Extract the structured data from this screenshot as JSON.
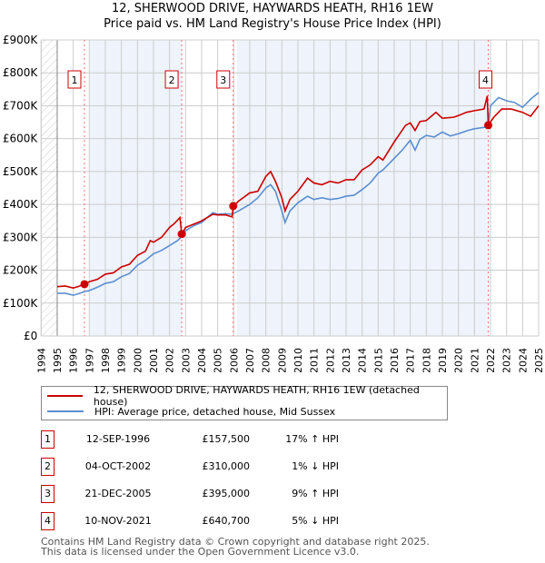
{
  "title_line1": "12, SHERWOOD DRIVE, HAYWARDS HEATH, RH16 1EW",
  "title_line2": "Price paid vs. HM Land Registry's House Price Index (HPI)",
  "chart_data": {
    "type": "line",
    "xlim": [
      1994,
      2025
    ],
    "ylim": [
      0,
      900000
    ],
    "x_ticks": [
      "1994",
      "1995",
      "1996",
      "1997",
      "1998",
      "1999",
      "2000",
      "2001",
      "2002",
      "2003",
      "2004",
      "2005",
      "2006",
      "2007",
      "2008",
      "2009",
      "2010",
      "2011",
      "2012",
      "2013",
      "2014",
      "2015",
      "2016",
      "2017",
      "2018",
      "2019",
      "2020",
      "2021",
      "2022",
      "2023",
      "2024",
      "2025"
    ],
    "y_ticks": [
      {
        "v": 0,
        "label": "£0"
      },
      {
        "v": 100000,
        "label": "£100K"
      },
      {
        "v": 200000,
        "label": "£200K"
      },
      {
        "v": 300000,
        "label": "£300K"
      },
      {
        "v": 400000,
        "label": "£400K"
      },
      {
        "v": 500000,
        "label": "£500K"
      },
      {
        "v": 600000,
        "label": "£600K"
      },
      {
        "v": 700000,
        "label": "£700K"
      },
      {
        "v": 800000,
        "label": "£800K"
      },
      {
        "v": 900000,
        "label": "£900K"
      }
    ],
    "series": [
      {
        "name": "12, SHERWOOD DRIVE, HAYWARDS HEATH, RH16 1EW (detached house)",
        "color": "#cc0000",
        "x": [
          1995,
          1995.5,
          1996,
          1996.3,
          1996.7,
          1997,
          1997.5,
          1998,
          1998.5,
          1999,
          1999.5,
          2000,
          2000.5,
          2000.8,
          2001,
          2001.5,
          2002,
          2002.3,
          2002.65,
          2002.76,
          2003,
          2003.5,
          2004,
          2004.7,
          2005,
          2005.5,
          2005.9,
          2005.97,
          2006.3,
          2007,
          2007.5,
          2008,
          2008.3,
          2008.6,
          2009,
          2009.2,
          2009.5,
          2010,
          2010.6,
          2011,
          2011.5,
          2012,
          2012.5,
          2013,
          2013.5,
          2014,
          2014.5,
          2015,
          2015.3,
          2016,
          2016.7,
          2017,
          2017.3,
          2017.6,
          2018,
          2018.6,
          2019,
          2019.7,
          2020,
          2020.5,
          2021,
          2021.6,
          2021.8,
          2021.86,
          2022.2,
          2022.7,
          2023.3,
          2024,
          2024.5,
          2025
        ],
        "y": [
          150000,
          152000,
          146000,
          150000,
          157500,
          165000,
          172000,
          188000,
          192000,
          210000,
          218000,
          245000,
          258000,
          290000,
          285000,
          300000,
          330000,
          342000,
          360000,
          310000,
          330000,
          340000,
          350000,
          370000,
          368000,
          368000,
          362000,
          395000,
          410000,
          435000,
          440000,
          485000,
          500000,
          470000,
          420000,
          380000,
          415000,
          440000,
          480000,
          465000,
          460000,
          470000,
          465000,
          475000,
          475000,
          505000,
          520000,
          545000,
          535000,
          590000,
          640000,
          648000,
          625000,
          652000,
          655000,
          680000,
          662000,
          665000,
          670000,
          680000,
          685000,
          690000,
          730000,
          640700,
          665000,
          690000,
          690000,
          680000,
          668000,
          700000
        ]
      },
      {
        "name": "HPI: Average price, detached house, Mid Sussex",
        "color": "#5b8fd0",
        "x": [
          1995,
          1995.5,
          1996,
          1996.3,
          1996.7,
          1997,
          1997.5,
          1998,
          1998.5,
          1999,
          1999.5,
          2000,
          2000.5,
          2001,
          2001.5,
          2002,
          2002.5,
          2002.8,
          2003,
          2003.5,
          2004,
          2004.7,
          2005,
          2005.5,
          2005.9,
          2006.3,
          2007,
          2007.5,
          2008,
          2008.3,
          2008.6,
          2009,
          2009.2,
          2009.5,
          2010,
          2010.6,
          2011,
          2011.5,
          2012,
          2012.5,
          2013,
          2013.5,
          2014,
          2014.5,
          2015,
          2015.3,
          2016,
          2016.5,
          2017,
          2017.3,
          2017.6,
          2018,
          2018.5,
          2019,
          2019.5,
          2020,
          2020.6,
          2021,
          2021.7,
          2021.86,
          2022,
          2022.5,
          2023,
          2023.5,
          2024,
          2024.5,
          2025
        ],
        "y": [
          130000,
          130000,
          124000,
          128000,
          135000,
          138000,
          148000,
          160000,
          165000,
          180000,
          190000,
          215000,
          230000,
          250000,
          260000,
          275000,
          290000,
          305000,
          320000,
          335000,
          345000,
          375000,
          370000,
          372000,
          370000,
          380000,
          400000,
          420000,
          450000,
          460000,
          440000,
          380000,
          345000,
          380000,
          405000,
          425000,
          415000,
          420000,
          415000,
          418000,
          425000,
          428000,
          445000,
          465000,
          495000,
          505000,
          540000,
          565000,
          595000,
          565000,
          598000,
          610000,
          605000,
          620000,
          608000,
          615000,
          625000,
          630000,
          635000,
          640000,
          700000,
          725000,
          715000,
          710000,
          695000,
          720000,
          740000
        ]
      }
    ],
    "sales": [
      {
        "id": "1",
        "x": 1996.7,
        "y": 157500,
        "date": "12-SEP-1996",
        "price": "£157,500",
        "hpi": "17% ↑ HPI"
      },
      {
        "id": "2",
        "x": 2002.76,
        "y": 310000,
        "date": "04-OCT-2002",
        "price": "£310,000",
        "hpi": "1% ↓ HPI"
      },
      {
        "id": "3",
        "x": 2005.97,
        "y": 395000,
        "date": "21-DEC-2005",
        "price": "£395,000",
        "hpi": "9% ↑ HPI"
      },
      {
        "id": "4",
        "x": 2021.86,
        "y": 640700,
        "date": "10-NOV-2021",
        "price": "£640,700",
        "hpi": "5% ↓ HPI"
      }
    ]
  },
  "legend": {
    "red": "12, SHERWOOD DRIVE, HAYWARDS HEATH, RH16 1EW (detached house)",
    "blue": "HPI: Average price, detached house, Mid Sussex"
  },
  "footer": {
    "line1": "Contains HM Land Registry data © Crown copyright and database right 2025.",
    "line2": "This data is licensed under the Open Government Licence v3.0."
  }
}
